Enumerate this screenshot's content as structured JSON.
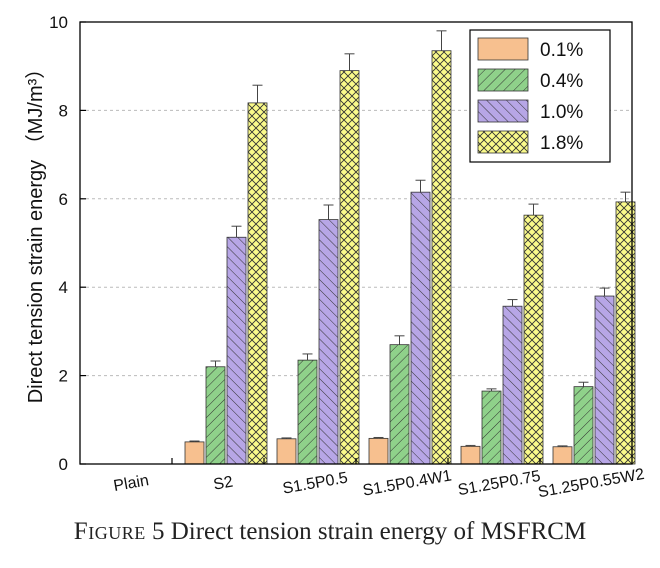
{
  "chart_data": {
    "type": "bar",
    "ylabel": "Direct tension strain energy （MJ/m³）",
    "ylim": [
      0,
      10
    ],
    "yticks": [
      "0",
      "2",
      "4",
      "6",
      "8",
      "10"
    ],
    "grid": true,
    "legend_position": "top-right",
    "categories": [
      "Plain",
      "S2",
      "S1.5P0.5",
      "S1.5P0.4W1",
      "S1.25P0.75",
      "S1.25P0.55W2"
    ],
    "series": [
      {
        "name": "0.1%",
        "values": [
          0,
          0.5,
          0.57,
          0.58,
          0.4,
          0.39
        ],
        "errors": [
          0,
          0.02,
          0.02,
          0.02,
          0.02,
          0.02
        ],
        "color": "#f7c08f"
      },
      {
        "name": "0.4%",
        "values": [
          0,
          2.2,
          2.35,
          2.7,
          1.65,
          1.75
        ],
        "errors": [
          0,
          0.13,
          0.14,
          0.2,
          0.05,
          0.1
        ],
        "color": "#8fd18a"
      },
      {
        "name": "1.0%",
        "values": [
          0,
          5.13,
          5.53,
          6.15,
          3.57,
          3.8
        ],
        "errors": [
          0,
          0.25,
          0.33,
          0.27,
          0.15,
          0.18
        ],
        "color": "#b7a6e6"
      },
      {
        "name": "1.8%",
        "values": [
          0,
          8.17,
          8.9,
          9.35,
          5.63,
          5.93
        ],
        "errors": [
          0,
          0.4,
          0.38,
          0.45,
          0.25,
          0.22
        ],
        "color": "#fafa8a"
      }
    ]
  },
  "caption": {
    "prefix": "Figure",
    "text": " 5 Direct tension strain energy of MSFRCM"
  }
}
